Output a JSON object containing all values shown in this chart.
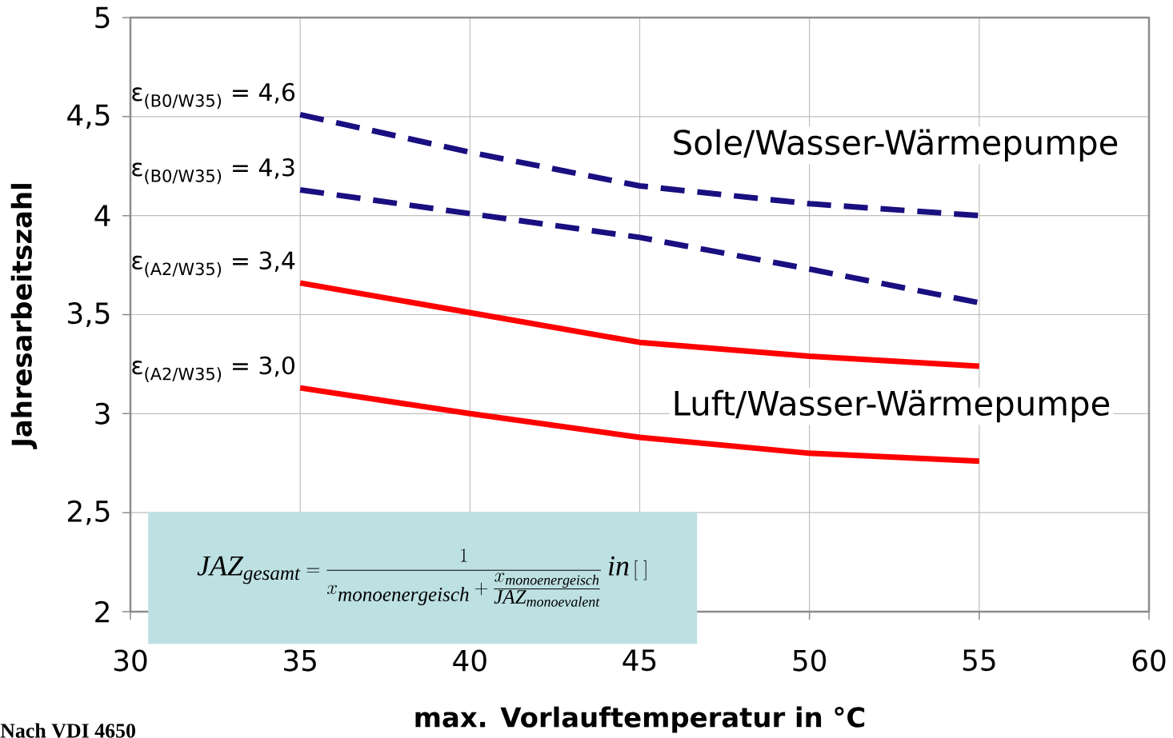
{
  "chart_data": {
    "type": "line",
    "xlabel": "max. Vorlauftemperatur in °C",
    "ylabel": "Jahresarbeitszahl",
    "x": [
      35,
      40,
      45,
      50,
      55
    ],
    "series": [
      {
        "name": "Sole/Wasser-Wärmepumpe",
        "color": "#1a0f80",
        "line_style": "dashed",
        "values": [
          4.51,
          4.32,
          4.15,
          4.06,
          4.0
        ]
      },
      {
        "color": "#1a0f80",
        "line_style": "dashed",
        "values": [
          4.13,
          4.01,
          3.89,
          3.73,
          3.56
        ]
      },
      {
        "color": "#ff0000",
        "line_style": "solid",
        "values": [
          3.66,
          3.51,
          3.36,
          3.29,
          3.24
        ]
      },
      {
        "name": "Luft/Wasser-Wärmepumpe",
        "color": "#ff0000",
        "line_style": "solid",
        "values": [
          3.13,
          3.0,
          2.88,
          2.8,
          2.76
        ]
      }
    ],
    "xlim": [
      30,
      60
    ],
    "ylim": [
      2,
      5
    ],
    "xticks": [
      30,
      35,
      40,
      45,
      50,
      55,
      60
    ],
    "yticks": [
      2,
      {
        "value": 2.5,
        "label": "2,5"
      },
      3,
      {
        "value": 3.5,
        "label": "3,5"
      },
      4,
      {
        "value": 4.5,
        "label": "4,5"
      },
      5
    ],
    "grid": true,
    "legend": false,
    "marker": "none",
    "annotations": [
      "ε$_{(B0/W35)}$ = 4,6",
      "ε$_{(B0/W35)}$ = 4,3",
      "ε$_{(A2/W35)}$ = 3,4",
      "ε$_{(A2/W35)}$ = 3,0",
      "\\mathit{JAZ}_{\\mathit{gesamt}} = \\frac{1}{x_{\\mathit{monoenergeisch}} + \\frac{x_{\\mathit{monoenergeisch}}}{\\mathit{JAZ}_{\\mathit{monoevalent}}}} \\; \\mathit{in}\\,[\\;]",
      "Nach VDI 4650"
    ]
  }
}
